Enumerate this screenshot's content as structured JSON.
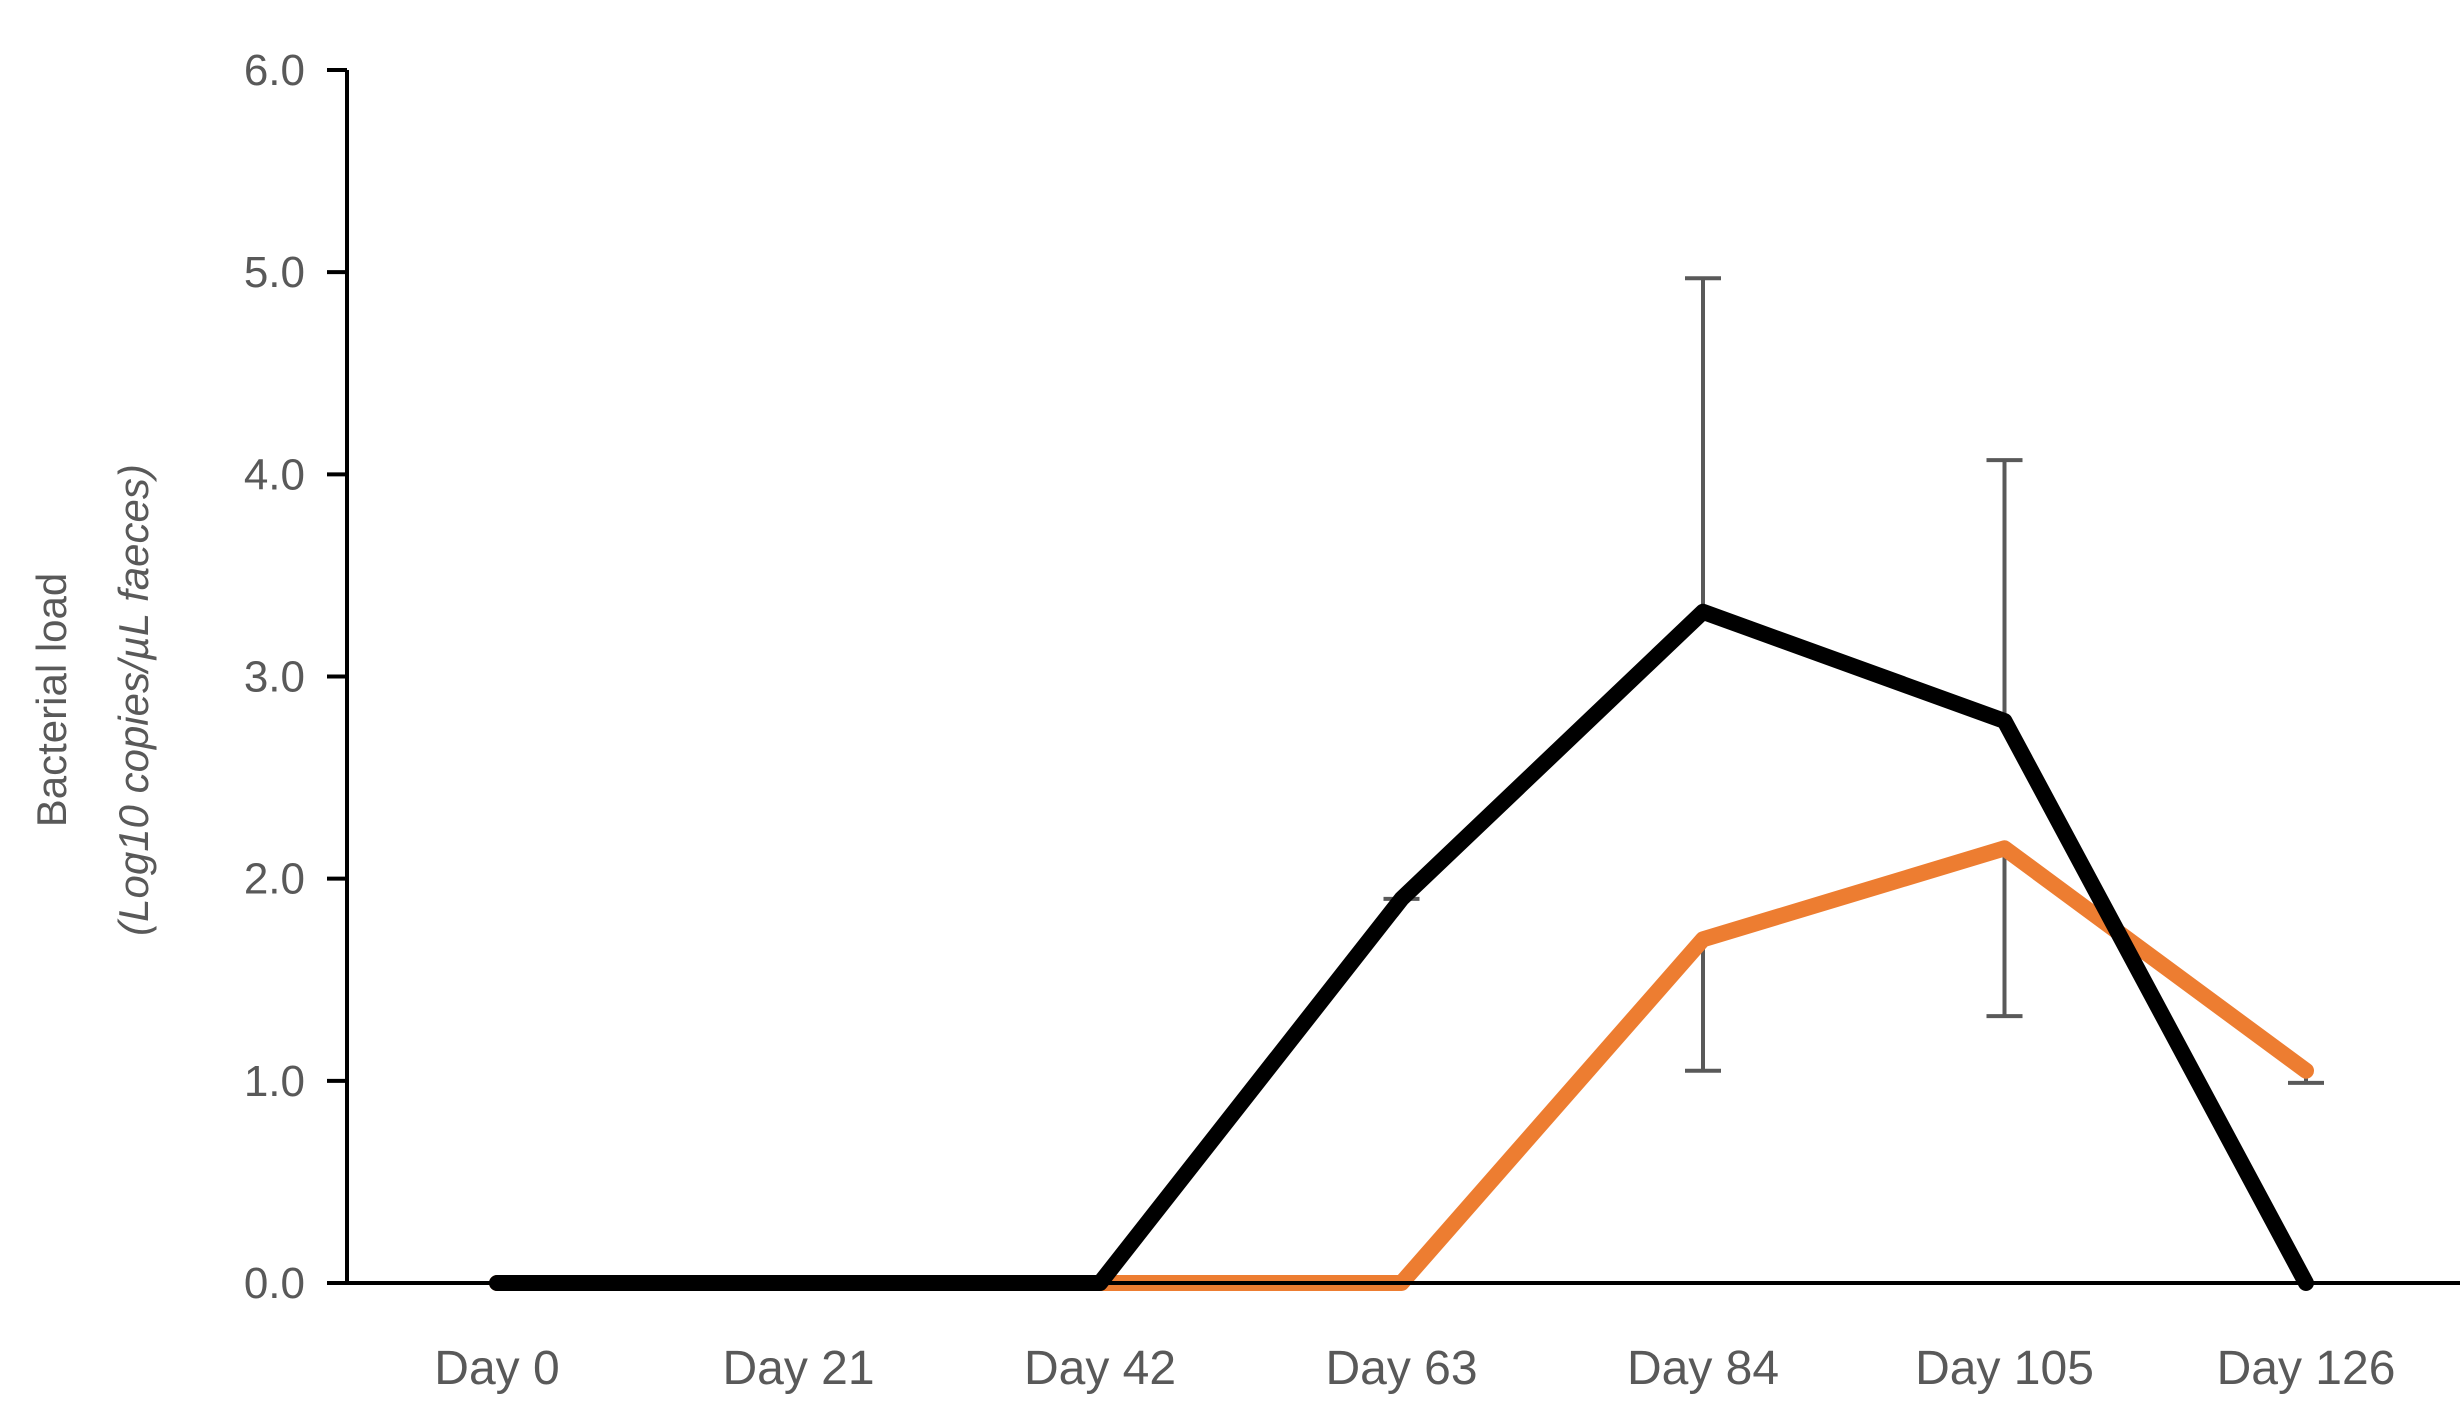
{
  "chart_data": {
    "type": "line",
    "title": "",
    "xlabel": "",
    "ylabel": "Bacterial load",
    "ylabel_sub": "(Log10 copies/µL faeces)",
    "categories": [
      "Day 0",
      "Day 21",
      "Day 42",
      "Day 63",
      "Day 84",
      "Day 105",
      "Day 126"
    ],
    "ylim": [
      0,
      6
    ],
    "yticks": [
      0,
      1,
      2,
      3,
      4,
      5,
      6
    ],
    "ytick_labels": [
      "0.0",
      "1.0",
      "2.0",
      "3.0",
      "4.0",
      "5.0",
      "6.0"
    ],
    "grid": false,
    "legend": "none",
    "series": [
      {
        "color": "#000000",
        "values": [
          0,
          0,
          0,
          1.9,
          3.32,
          2.78,
          0
        ],
        "error_upper": [
          null,
          null,
          null,
          0.0,
          1.65,
          1.29,
          null
        ]
      },
      {
        "color": "#ED7D31",
        "values": [
          0,
          0,
          0,
          0,
          1.7,
          2.15,
          1.05
        ],
        "error_lower": [
          null,
          null,
          null,
          null,
          0.65,
          0.83,
          0.06
        ]
      }
    ],
    "error_bar_color": "#595959"
  }
}
